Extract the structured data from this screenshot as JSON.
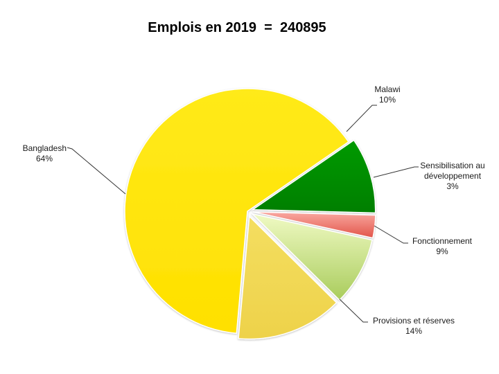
{
  "chart_data": {
    "type": "pie",
    "title": "Emplois en 2019  =  240895",
    "slices": [
      {
        "name": "Bangladesh",
        "value": 64,
        "label": "64%",
        "color": "#FFE600"
      },
      {
        "name": "Malawi",
        "value": 10,
        "label": "10%",
        "color": "#008F00"
      },
      {
        "name": "Sensibilisation au développement",
        "name_lines": [
          "Sensibilisation au",
          "développement"
        ],
        "value": 3,
        "label": "3%",
        "color": "#F08080"
      },
      {
        "name": "Fonctionnement",
        "value": 9,
        "label": "9%",
        "color": "#C8E27A"
      },
      {
        "name": "Provisions et réserves",
        "value": 14,
        "label": "14%",
        "color": "#F2D84E"
      }
    ],
    "legend": "none",
    "exploded": [
      "Malawi",
      "Sensibilisation au développement",
      "Fonctionnement",
      "Provisions et réserves"
    ]
  }
}
